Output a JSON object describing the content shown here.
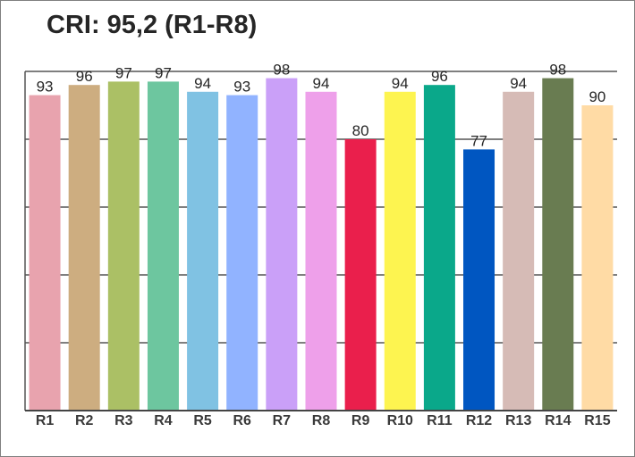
{
  "chart_data": {
    "type": "bar",
    "title": "CRI: 95,2 (R1-R8)",
    "xlabel": "",
    "ylabel": "",
    "ylim": [
      0,
      100
    ],
    "grid": true,
    "legend": "none",
    "categories": [
      "R1",
      "R2",
      "R3",
      "R4",
      "R5",
      "R6",
      "R7",
      "R8",
      "R9",
      "R10",
      "R11",
      "R12",
      "R13",
      "R14",
      "R15"
    ],
    "values": [
      93,
      96,
      97,
      97,
      94,
      93,
      98,
      94,
      80,
      94,
      96,
      77,
      94,
      98,
      90
    ],
    "colors": [
      "#e8a3ae",
      "#cdad80",
      "#abc065",
      "#6dc69f",
      "#80c2e3",
      "#91b3ff",
      "#caa0f8",
      "#eea0ea",
      "#ea1f4c",
      "#fdf450",
      "#0aa88a",
      "#0056c1",
      "#d6bbb6",
      "#697c51",
      "#ffdba5"
    ]
  }
}
